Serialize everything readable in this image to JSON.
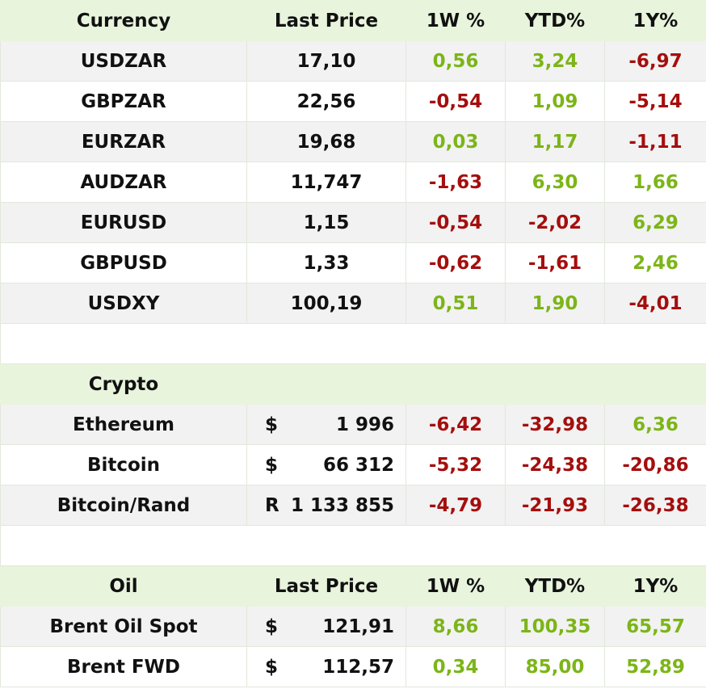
{
  "colors": {
    "positive": "#7cb518",
    "negative": "#a50e0e",
    "header_bg": "#e8f4dc",
    "alt_row_bg": "#f2f2f2"
  },
  "currency": {
    "headers": [
      "Currency",
      "Last Price",
      "1W %",
      "YTD%",
      "1Y%"
    ],
    "rows": [
      {
        "name": "USDZAR",
        "price": "17,10",
        "w1": "0,56",
        "ytd": "3,24",
        "y1": "-6,97"
      },
      {
        "name": "GBPZAR",
        "price": "22,56",
        "w1": "-0,54",
        "ytd": "1,09",
        "y1": "-5,14"
      },
      {
        "name": "EURZAR",
        "price": "19,68",
        "w1": "0,03",
        "ytd": "1,17",
        "y1": "-1,11"
      },
      {
        "name": "AUDZAR",
        "price": "11,747",
        "w1": "-1,63",
        "ytd": "6,30",
        "y1": "1,66"
      },
      {
        "name": "EURUSD",
        "price": "1,15",
        "w1": "-0,54",
        "ytd": "-2,02",
        "y1": "6,29"
      },
      {
        "name": "GBPUSD",
        "price": "1,33",
        "w1": "-0,62",
        "ytd": "-1,61",
        "y1": "2,46"
      },
      {
        "name": "USDXY",
        "price": "100,19",
        "w1": "0,51",
        "ytd": "1,90",
        "y1": "-4,01"
      }
    ]
  },
  "crypto": {
    "title": "Crypto",
    "rows": [
      {
        "name": "Ethereum",
        "symbol": "$",
        "price": "1 996",
        "w1": "-6,42",
        "ytd": "-32,98",
        "y1": "6,36"
      },
      {
        "name": "Bitcoin",
        "symbol": "$",
        "price": "66 312",
        "w1": "-5,32",
        "ytd": "-24,38",
        "y1": "-20,86"
      },
      {
        "name": "Bitcoin/Rand",
        "symbol": "R",
        "price": "1 133 855",
        "w1": "-4,79",
        "ytd": "-21,93",
        "y1": "-26,38"
      }
    ]
  },
  "oil": {
    "headers": [
      "Oil",
      "Last Price",
      "1W %",
      "YTD%",
      "1Y%"
    ],
    "rows": [
      {
        "name": "Brent Oil Spot",
        "symbol": "$",
        "price": "121,91",
        "w1": "8,66",
        "ytd": "100,35",
        "y1": "65,57"
      },
      {
        "name": "Brent FWD",
        "symbol": "$",
        "price": "112,57",
        "w1": "0,34",
        "ytd": "85,00",
        "y1": "52,89"
      }
    ]
  }
}
